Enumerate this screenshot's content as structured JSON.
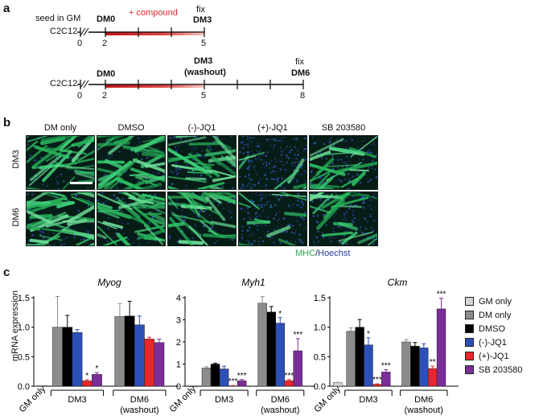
{
  "panel_a": {
    "letter": "a",
    "row1": {
      "cell": "C2C12",
      "seed": "seed in GM",
      "compound": "+ compound",
      "dm0": "DM0",
      "fix": "fix",
      "end": "DM3",
      "ticks": [
        "0",
        "2",
        "5"
      ]
    },
    "row2": {
      "cell": "C2C12",
      "dm0": "DM0",
      "mid1": "DM3",
      "mid2": "(washout)",
      "fix": "fix",
      "end": "DM6",
      "ticks": [
        "0",
        "2",
        "5",
        "8"
      ]
    }
  },
  "panel_b": {
    "letter": "b",
    "columns": [
      "DM only",
      "DMSO",
      "(-)-JQ1",
      "(+)-JQ1",
      "SB 203580"
    ],
    "rows": [
      "DM3",
      "DM6"
    ],
    "stain_mhc": "MHC",
    "stain_sep": "/",
    "stain_hoechst": "Hoechst"
  },
  "panel_c": {
    "letter": "c",
    "ylabel": "mRNA expression",
    "gm_label": "GM only",
    "groups": [
      "DM3",
      "DM6",
      "(washout)"
    ],
    "legend": [
      {
        "label": "GM only",
        "color": "#d4d4d4"
      },
      {
        "label": "DM only",
        "color": "#8c8c8c"
      },
      {
        "label": "DMSO",
        "color": "#000000"
      },
      {
        "label": "(-)-JQ1",
        "color": "#2c4fb8"
      },
      {
        "label": "(+)-JQ1",
        "color": "#e8262b"
      },
      {
        "label": "SB 203580",
        "color": "#7b2d99"
      }
    ]
  },
  "chart_data": [
    {
      "type": "bar",
      "title": "Myog",
      "ylabel": "mRNA expression",
      "ylim": [
        0,
        1.5
      ],
      "yticks": [
        "0.0",
        "0.5",
        "1.0",
        "1.5"
      ],
      "gm_only": {
        "value": 0.01,
        "err": 0.0
      },
      "series": [
        {
          "name": "DM only",
          "values": [
            1.0,
            1.18
          ],
          "errors": [
            0.52,
            0.22
          ]
        },
        {
          "name": "DMSO",
          "values": [
            1.0,
            1.19
          ],
          "errors": [
            0.2,
            0.25
          ]
        },
        {
          "name": "(-)-JQ1",
          "values": [
            0.91,
            1.04
          ],
          "errors": [
            0.05,
            0.15
          ]
        },
        {
          "name": "(+)-JQ1",
          "values": [
            0.09,
            0.8
          ],
          "errors": [
            0.02,
            0.03
          ]
        },
        {
          "name": "SB 203580",
          "values": [
            0.2,
            0.74
          ],
          "errors": [
            0.03,
            0.06
          ]
        }
      ],
      "categories": [
        "DM3",
        "DM6 (washout)"
      ],
      "significance": [
        [
          "",
          "",
          "",
          "*",
          "*"
        ],
        [
          "",
          "",
          "",
          "",
          ""
        ]
      ]
    },
    {
      "type": "bar",
      "title": "Myh1",
      "ylabel": "",
      "ylim": [
        0,
        4
      ],
      "yticks": [
        "0",
        "1",
        "2",
        "3",
        "4"
      ],
      "gm_only": {
        "value": 0.0,
        "err": 0.0
      },
      "series": [
        {
          "name": "DM only",
          "values": [
            0.82,
            3.75
          ],
          "errors": [
            0.06,
            0.3
          ]
        },
        {
          "name": "DMSO",
          "values": [
            1.0,
            3.35
          ],
          "errors": [
            0.04,
            0.25
          ]
        },
        {
          "name": "(-)-JQ1",
          "values": [
            0.78,
            2.85
          ],
          "errors": [
            0.12,
            0.25
          ]
        },
        {
          "name": "(+)-JQ1",
          "values": [
            0.02,
            0.25
          ],
          "errors": [
            0.01,
            0.05
          ]
        },
        {
          "name": "SB 203580",
          "values": [
            0.25,
            1.6
          ],
          "errors": [
            0.05,
            0.55
          ]
        }
      ],
      "categories": [
        "DM3",
        "DM6 (washout)"
      ],
      "significance": [
        [
          "",
          "",
          "",
          "***",
          "***"
        ],
        [
          "",
          "",
          "*",
          "***",
          "***"
        ]
      ]
    },
    {
      "type": "bar",
      "title": "Ckm",
      "ylabel": "",
      "ylim": [
        0,
        1.5
      ],
      "yticks": [
        "0.0",
        "0.5",
        "1.0",
        "1.5"
      ],
      "gm_only": {
        "value": 0.06,
        "err": 0.01
      },
      "series": [
        {
          "name": "DM only",
          "values": [
            0.93,
            0.75
          ],
          "errors": [
            0.06,
            0.04
          ]
        },
        {
          "name": "DMSO",
          "values": [
            1.0,
            0.68
          ],
          "errors": [
            0.13,
            0.06
          ]
        },
        {
          "name": "(-)-JQ1",
          "values": [
            0.7,
            0.65
          ],
          "errors": [
            0.12,
            0.07
          ]
        },
        {
          "name": "(+)-JQ1",
          "values": [
            0.03,
            0.3
          ],
          "errors": [
            0.01,
            0.04
          ]
        },
        {
          "name": "SB 203580",
          "values": [
            0.24,
            1.31
          ],
          "errors": [
            0.04,
            0.18
          ]
        }
      ],
      "categories": [
        "DM3",
        "DM6 (washout)"
      ],
      "significance": [
        [
          "",
          "",
          "*",
          "***",
          "***"
        ],
        [
          "",
          "",
          "",
          "**",
          "***"
        ]
      ]
    }
  ]
}
